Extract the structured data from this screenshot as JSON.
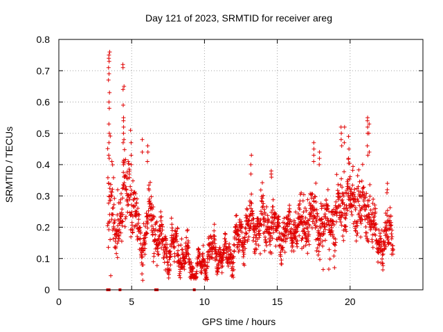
{
  "chart_data": {
    "type": "scatter",
    "title": "Day 121 of 2023, SRMTID for receiver areg",
    "xlabel": "GPS time / hours",
    "ylabel": "SRMTID / TECUs",
    "xlim": [
      0,
      25
    ],
    "ylim": [
      0,
      0.8
    ],
    "xticks": [
      0,
      5,
      10,
      15,
      20
    ],
    "xtick_labels": [
      "0",
      "5",
      "10",
      "15",
      "20"
    ],
    "yticks": [
      0,
      0.1,
      0.2,
      0.3,
      0.4,
      0.5,
      0.6,
      0.7,
      0.8
    ],
    "ytick_labels": [
      "0",
      "0.1",
      "0.2",
      "0.3",
      "0.4",
      "0.5",
      "0.6",
      "0.7",
      "0.8"
    ],
    "grid": true,
    "marker": "plus",
    "color": "#e00000",
    "trend": [
      [
        3.4,
        0.27
      ],
      [
        3.7,
        0.23
      ],
      [
        4.0,
        0.22
      ],
      [
        4.3,
        0.27
      ],
      [
        4.6,
        0.31
      ],
      [
        4.9,
        0.31
      ],
      [
        5.2,
        0.24
      ],
      [
        5.5,
        0.17
      ],
      [
        5.8,
        0.15
      ],
      [
        6.2,
        0.24
      ],
      [
        6.6,
        0.19
      ],
      [
        7.0,
        0.15
      ],
      [
        7.4,
        0.13
      ],
      [
        7.8,
        0.14
      ],
      [
        8.2,
        0.12
      ],
      [
        8.6,
        0.11
      ],
      [
        9.0,
        0.08
      ],
      [
        9.4,
        0.06
      ],
      [
        9.8,
        0.07
      ],
      [
        10.2,
        0.11
      ],
      [
        10.6,
        0.12
      ],
      [
        11.0,
        0.11
      ],
      [
        11.4,
        0.1
      ],
      [
        11.8,
        0.12
      ],
      [
        12.2,
        0.14
      ],
      [
        12.6,
        0.19
      ],
      [
        13.0,
        0.2
      ],
      [
        13.4,
        0.21
      ],
      [
        13.8,
        0.2
      ],
      [
        14.2,
        0.21
      ],
      [
        14.6,
        0.21
      ],
      [
        15.0,
        0.19
      ],
      [
        15.4,
        0.18
      ],
      [
        15.8,
        0.19
      ],
      [
        16.2,
        0.2
      ],
      [
        16.6,
        0.2
      ],
      [
        17.0,
        0.22
      ],
      [
        17.4,
        0.22
      ],
      [
        17.8,
        0.23
      ],
      [
        18.2,
        0.19
      ],
      [
        18.6,
        0.22
      ],
      [
        19.0,
        0.22
      ],
      [
        19.4,
        0.27
      ],
      [
        19.8,
        0.29
      ],
      [
        20.2,
        0.28
      ],
      [
        20.6,
        0.27
      ],
      [
        21.0,
        0.26
      ],
      [
        21.4,
        0.25
      ],
      [
        21.8,
        0.15
      ],
      [
        22.2,
        0.17
      ],
      [
        22.6,
        0.17
      ],
      [
        22.9,
        0.18
      ]
    ],
    "spread": [
      [
        3.4,
        0.18
      ],
      [
        4.0,
        0.1
      ],
      [
        4.6,
        0.12
      ],
      [
        5.2,
        0.1
      ],
      [
        5.8,
        0.05
      ],
      [
        6.2,
        0.09
      ],
      [
        7.0,
        0.07
      ],
      [
        8.0,
        0.06
      ],
      [
        9.0,
        0.04
      ],
      [
        9.8,
        0.03
      ],
      [
        10.6,
        0.05
      ],
      [
        11.4,
        0.03
      ],
      [
        12.2,
        0.05
      ],
      [
        13.0,
        0.07
      ],
      [
        14.0,
        0.07
      ],
      [
        15.0,
        0.06
      ],
      [
        16.0,
        0.06
      ],
      [
        17.0,
        0.09
      ],
      [
        17.6,
        0.08
      ],
      [
        18.6,
        0.09
      ],
      [
        19.4,
        0.1
      ],
      [
        20.2,
        0.1
      ],
      [
        21.2,
        0.1
      ],
      [
        21.8,
        0.06
      ],
      [
        22.9,
        0.06
      ]
    ],
    "peaks": [
      {
        "x": 3.42,
        "values": [
          0.75,
          0.74,
          0.71,
          0.67,
          0.6,
          0.53,
          0.47,
          0.43
        ]
      },
      {
        "x": 3.47,
        "values": [
          0.76,
          0.73,
          0.69,
          0.63,
          0.58,
          0.5,
          0.42
        ]
      },
      {
        "x": 4.42,
        "values": [
          0.72,
          0.71,
          0.64,
          0.59,
          0.54,
          0.5,
          0.47
        ]
      },
      {
        "x": 4.47,
        "values": [
          0.65,
          0.55,
          0.52,
          0.48
        ]
      },
      {
        "x": 4.95,
        "values": [
          0.51,
          0.47,
          0.43,
          0.4
        ]
      },
      {
        "x": 5.75,
        "values": [
          0.48,
          0.44
        ]
      },
      {
        "x": 6.1,
        "values": [
          0.46,
          0.44,
          0.41
        ]
      },
      {
        "x": 13.2,
        "values": [
          0.43,
          0.4,
          0.37
        ]
      },
      {
        "x": 14.6,
        "values": [
          0.38,
          0.37,
          0.36
        ]
      },
      {
        "x": 17.5,
        "values": [
          0.47,
          0.45,
          0.43,
          0.41
        ]
      },
      {
        "x": 17.9,
        "values": [
          0.44,
          0.42,
          0.4
        ]
      },
      {
        "x": 19.4,
        "values": [
          0.52,
          0.5,
          0.48,
          0.46
        ]
      },
      {
        "x": 19.6,
        "values": [
          0.52,
          0.47
        ]
      },
      {
        "x": 19.9,
        "values": [
          0.49,
          0.45,
          0.42
        ]
      },
      {
        "x": 21.2,
        "values": [
          0.55,
          0.54,
          0.52,
          0.5,
          0.46,
          0.43
        ]
      },
      {
        "x": 21.3,
        "values": [
          0.53,
          0.5,
          0.44
        ]
      },
      {
        "x": 22.55,
        "values": [
          0.34,
          0.32,
          0.31
        ]
      }
    ],
    "zero_markers": [
      3.35,
      3.45,
      4.2,
      6.65,
      6.75,
      9.3
    ],
    "x_range": [
      3.35,
      22.95
    ],
    "n_points": 1800,
    "seed": 121
  }
}
